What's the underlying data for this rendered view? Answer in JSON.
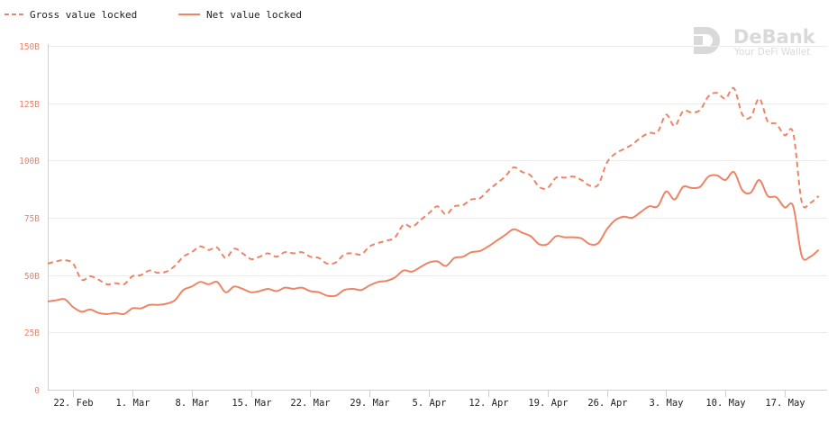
{
  "watermark": {
    "brand": "DeBank",
    "tagline": "Your DeFi Wallet"
  },
  "colors": {
    "series": "#ee8466",
    "grid": "#ececec",
    "axis": "#cfcfcf",
    "tick_label_y": "#e8826a"
  },
  "chart_data": {
    "type": "line",
    "title": "",
    "xlabel": "",
    "ylabel": "",
    "ylim": [
      0,
      150
    ],
    "y_ticks": [
      "0",
      "25B",
      "50B",
      "75B",
      "100B",
      "125B",
      "150B"
    ],
    "y_tick_values": [
      0,
      25,
      50,
      75,
      100,
      125,
      150
    ],
    "x_ticks": [
      "22. Feb",
      "1. Mar",
      "8. Mar",
      "15. Mar",
      "22. Mar",
      "29. Mar",
      "5. Apr",
      "12. Apr",
      "19. Apr",
      "26. Apr",
      "3. May",
      "10. May",
      "17. May"
    ],
    "x_tick_dates": [
      "2021-02-22",
      "2021-03-01",
      "2021-03-08",
      "2021-03-15",
      "2021-03-22",
      "2021-03-29",
      "2021-04-05",
      "2021-04-12",
      "2021-04-19",
      "2021-04-26",
      "2021-05-03",
      "2021-05-10",
      "2021-05-17"
    ],
    "xlim": [
      "2021-02-19",
      "2021-05-22"
    ],
    "grid": true,
    "legend": "top-left",
    "series": [
      {
        "name": "Gross value locked",
        "style": "dashed",
        "points": [
          [
            "2021-02-19",
            55
          ],
          [
            "2021-02-20",
            56
          ],
          [
            "2021-02-21",
            56.5
          ],
          [
            "2021-02-22",
            55
          ],
          [
            "2021-02-23",
            48
          ],
          [
            "2021-02-24",
            49.5
          ],
          [
            "2021-02-25",
            48
          ],
          [
            "2021-02-26",
            46
          ],
          [
            "2021-02-27",
            46.5
          ],
          [
            "2021-02-28",
            46
          ],
          [
            "2021-03-01",
            49.5
          ],
          [
            "2021-03-02",
            50
          ],
          [
            "2021-03-03",
            52
          ],
          [
            "2021-03-04",
            51
          ],
          [
            "2021-03-05",
            51.5
          ],
          [
            "2021-03-06",
            54
          ],
          [
            "2021-03-07",
            58
          ],
          [
            "2021-03-08",
            60
          ],
          [
            "2021-03-09",
            62.5
          ],
          [
            "2021-03-10",
            61
          ],
          [
            "2021-03-11",
            62
          ],
          [
            "2021-03-12",
            57.5
          ],
          [
            "2021-03-13",
            61.5
          ],
          [
            "2021-03-14",
            59.5
          ],
          [
            "2021-03-15",
            57
          ],
          [
            "2021-03-16",
            58
          ],
          [
            "2021-03-17",
            59.5
          ],
          [
            "2021-03-18",
            58
          ],
          [
            "2021-03-19",
            60
          ],
          [
            "2021-03-20",
            59.5
          ],
          [
            "2021-03-21",
            60
          ],
          [
            "2021-03-22",
            58
          ],
          [
            "2021-03-23",
            57.5
          ],
          [
            "2021-03-24",
            55
          ],
          [
            "2021-03-25",
            55.5
          ],
          [
            "2021-03-26",
            59
          ],
          [
            "2021-03-27",
            59.5
          ],
          [
            "2021-03-28",
            59
          ],
          [
            "2021-03-29",
            62.5
          ],
          [
            "2021-03-30",
            64
          ],
          [
            "2021-03-31",
            65
          ],
          [
            "2021-04-01",
            66.5
          ],
          [
            "2021-04-02",
            72
          ],
          [
            "2021-04-03",
            71
          ],
          [
            "2021-04-04",
            74
          ],
          [
            "2021-04-05",
            77
          ],
          [
            "2021-04-06",
            80
          ],
          [
            "2021-04-07",
            76.5
          ],
          [
            "2021-04-08",
            80
          ],
          [
            "2021-04-09",
            80.5
          ],
          [
            "2021-04-10",
            83
          ],
          [
            "2021-04-11",
            83.5
          ],
          [
            "2021-04-12",
            87
          ],
          [
            "2021-04-13",
            90
          ],
          [
            "2021-04-14",
            93
          ],
          [
            "2021-04-15",
            97
          ],
          [
            "2021-04-16",
            95
          ],
          [
            "2021-04-17",
            93.5
          ],
          [
            "2021-04-18",
            88.5
          ],
          [
            "2021-04-19",
            88
          ],
          [
            "2021-04-20",
            92.5
          ],
          [
            "2021-04-21",
            92.5
          ],
          [
            "2021-04-22",
            93
          ],
          [
            "2021-04-23",
            91.5
          ],
          [
            "2021-04-24",
            89
          ],
          [
            "2021-04-25",
            89.5
          ],
          [
            "2021-04-26",
            99
          ],
          [
            "2021-04-27",
            103
          ],
          [
            "2021-04-28",
            105
          ],
          [
            "2021-04-29",
            107
          ],
          [
            "2021-04-30",
            110
          ],
          [
            "2021-05-01",
            112
          ],
          [
            "2021-05-02",
            112.5
          ],
          [
            "2021-05-03",
            120
          ],
          [
            "2021-05-04",
            115
          ],
          [
            "2021-05-05",
            121.5
          ],
          [
            "2021-05-06",
            121
          ],
          [
            "2021-05-07",
            122
          ],
          [
            "2021-05-08",
            128
          ],
          [
            "2021-05-09",
            129.5
          ],
          [
            "2021-05-10",
            127
          ],
          [
            "2021-05-11",
            131.5
          ],
          [
            "2021-05-12",
            120
          ],
          [
            "2021-05-13",
            119
          ],
          [
            "2021-05-14",
            127
          ],
          [
            "2021-05-15",
            117
          ],
          [
            "2021-05-16",
            116
          ],
          [
            "2021-05-17",
            111
          ],
          [
            "2021-05-18",
            112
          ],
          [
            "2021-05-19",
            82
          ],
          [
            "2021-05-20",
            81.5
          ],
          [
            "2021-05-21",
            84.5
          ]
        ]
      },
      {
        "name": "Net value locked",
        "style": "solid",
        "points": [
          [
            "2021-02-19",
            38.5
          ],
          [
            "2021-02-20",
            39
          ],
          [
            "2021-02-21",
            39.5
          ],
          [
            "2021-02-22",
            36
          ],
          [
            "2021-02-23",
            34
          ],
          [
            "2021-02-24",
            35
          ],
          [
            "2021-02-25",
            33.5
          ],
          [
            "2021-02-26",
            33
          ],
          [
            "2021-02-27",
            33.5
          ],
          [
            "2021-02-28",
            33
          ],
          [
            "2021-03-01",
            35.5
          ],
          [
            "2021-03-02",
            35.5
          ],
          [
            "2021-03-03",
            37
          ],
          [
            "2021-03-04",
            37
          ],
          [
            "2021-03-05",
            37.5
          ],
          [
            "2021-03-06",
            39
          ],
          [
            "2021-03-07",
            43.5
          ],
          [
            "2021-03-08",
            45
          ],
          [
            "2021-03-09",
            47
          ],
          [
            "2021-03-10",
            46
          ],
          [
            "2021-03-11",
            47
          ],
          [
            "2021-03-12",
            42.5
          ],
          [
            "2021-03-13",
            45
          ],
          [
            "2021-03-14",
            44
          ],
          [
            "2021-03-15",
            42.5
          ],
          [
            "2021-03-16",
            43
          ],
          [
            "2021-03-17",
            44
          ],
          [
            "2021-03-18",
            43
          ],
          [
            "2021-03-19",
            44.5
          ],
          [
            "2021-03-20",
            44
          ],
          [
            "2021-03-21",
            44.5
          ],
          [
            "2021-03-22",
            43
          ],
          [
            "2021-03-23",
            42.5
          ],
          [
            "2021-03-24",
            41
          ],
          [
            "2021-03-25",
            41
          ],
          [
            "2021-03-26",
            43.5
          ],
          [
            "2021-03-27",
            44
          ],
          [
            "2021-03-28",
            43.5
          ],
          [
            "2021-03-29",
            45.5
          ],
          [
            "2021-03-30",
            47
          ],
          [
            "2021-03-31",
            47.5
          ],
          [
            "2021-04-01",
            49
          ],
          [
            "2021-04-02",
            52
          ],
          [
            "2021-04-03",
            51.5
          ],
          [
            "2021-04-04",
            53.5
          ],
          [
            "2021-04-05",
            55.5
          ],
          [
            "2021-04-06",
            56
          ],
          [
            "2021-04-07",
            54
          ],
          [
            "2021-04-08",
            57.5
          ],
          [
            "2021-04-09",
            58
          ],
          [
            "2021-04-10",
            60
          ],
          [
            "2021-04-11",
            60.5
          ],
          [
            "2021-04-12",
            62.5
          ],
          [
            "2021-04-13",
            65
          ],
          [
            "2021-04-14",
            67.5
          ],
          [
            "2021-04-15",
            70
          ],
          [
            "2021-04-16",
            68.5
          ],
          [
            "2021-04-17",
            67
          ],
          [
            "2021-04-18",
            63.5
          ],
          [
            "2021-04-19",
            63.5
          ],
          [
            "2021-04-20",
            67
          ],
          [
            "2021-04-21",
            66.5
          ],
          [
            "2021-04-22",
            66.5
          ],
          [
            "2021-04-23",
            66
          ],
          [
            "2021-04-24",
            63.5
          ],
          [
            "2021-04-25",
            64
          ],
          [
            "2021-04-26",
            70
          ],
          [
            "2021-04-27",
            74
          ],
          [
            "2021-04-28",
            75.5
          ],
          [
            "2021-04-29",
            75
          ],
          [
            "2021-04-30",
            77.5
          ],
          [
            "2021-05-01",
            80
          ],
          [
            "2021-05-02",
            80
          ],
          [
            "2021-05-03",
            86.5
          ],
          [
            "2021-05-04",
            83
          ],
          [
            "2021-05-05",
            88.5
          ],
          [
            "2021-05-06",
            88
          ],
          [
            "2021-05-07",
            88.5
          ],
          [
            "2021-05-08",
            93
          ],
          [
            "2021-05-09",
            93.5
          ],
          [
            "2021-05-10",
            91.5
          ],
          [
            "2021-05-11",
            95
          ],
          [
            "2021-05-12",
            87
          ],
          [
            "2021-05-13",
            86
          ],
          [
            "2021-05-14",
            91.5
          ],
          [
            "2021-05-15",
            84.5
          ],
          [
            "2021-05-16",
            84
          ],
          [
            "2021-05-17",
            79.5
          ],
          [
            "2021-05-18",
            80
          ],
          [
            "2021-05-19",
            58.5
          ],
          [
            "2021-05-20",
            58
          ],
          [
            "2021-05-21",
            61
          ]
        ]
      }
    ]
  }
}
